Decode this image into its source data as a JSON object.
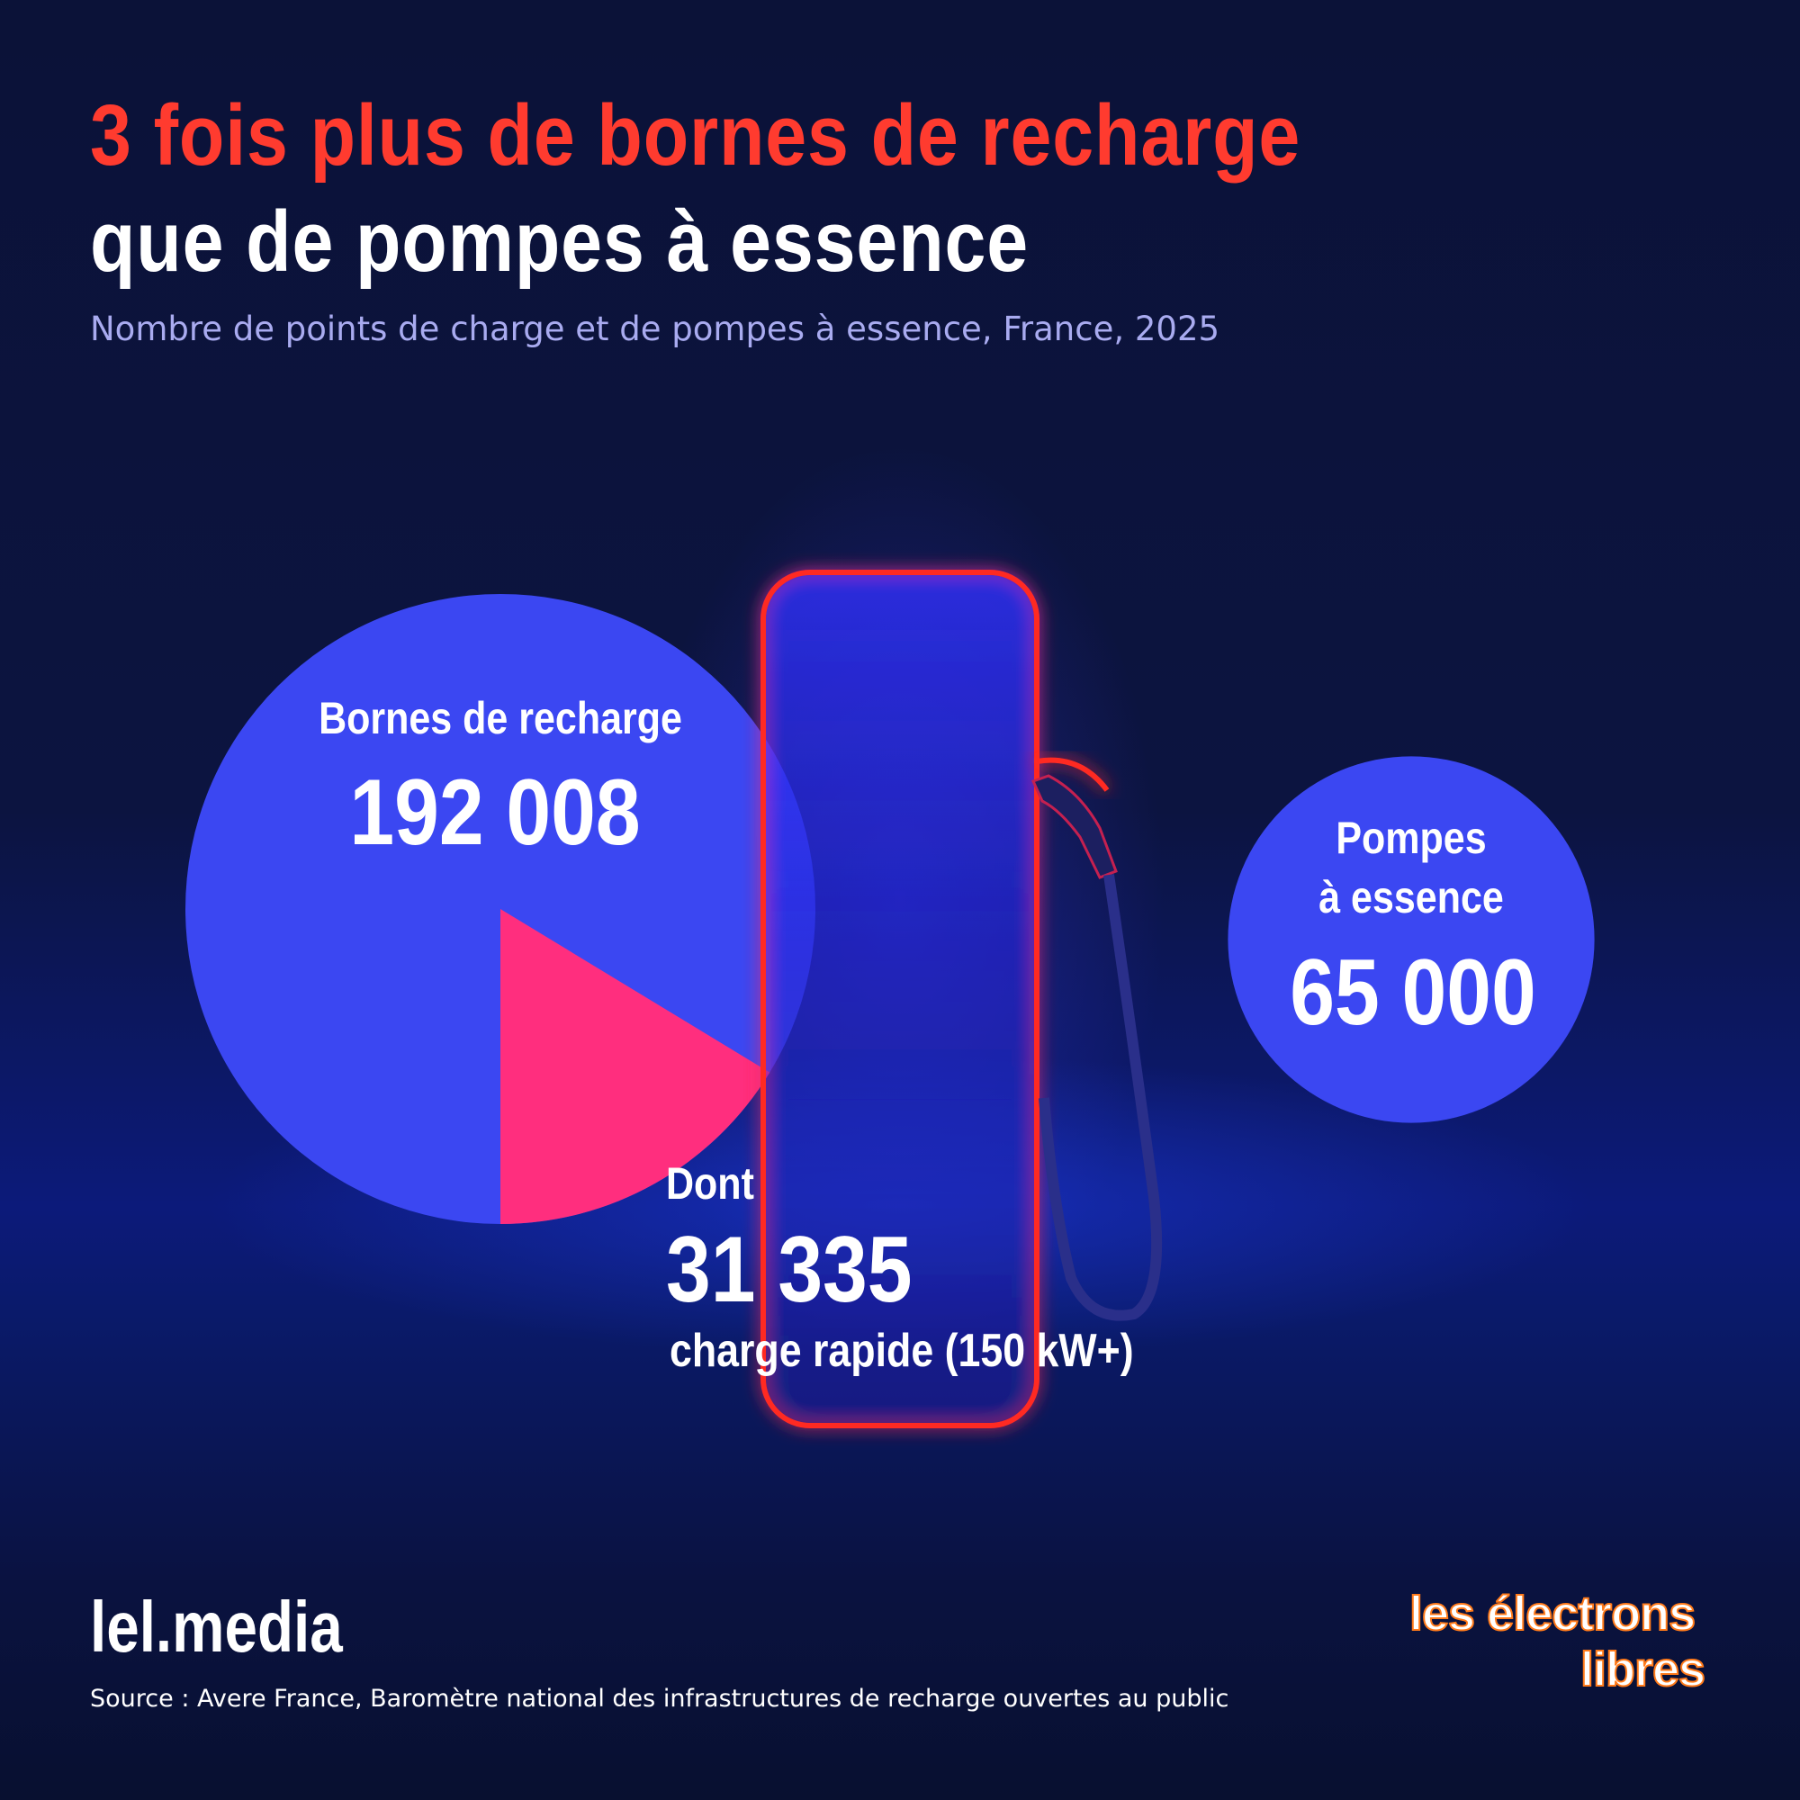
{
  "header": {
    "title_line1": "3 fois plus de bornes de recharge",
    "title_line2": "que de pompes à essence",
    "subtitle": "Nombre de points de charge et de pompes à essence, France, 2025"
  },
  "chart_data": {
    "type": "pie",
    "title": "3 fois plus de bornes de recharge que de pompes à essence",
    "subtitle": "Nombre de points de charge et de pompes à essence, France, 2025",
    "circles": [
      {
        "label": "Bornes de recharge",
        "value": 192008,
        "value_text": "192 008",
        "color": "#3b47f2",
        "slice": {
          "prefix": "Dont",
          "label": "charge rapide (150 kW+)",
          "value": 31335,
          "value_text": "31 335",
          "color": "#ff2e7e"
        }
      },
      {
        "label_line1": "Pompes",
        "label_line2": "à essence",
        "value": 65000,
        "value_text": "65 000",
        "color": "#3b47f2"
      }
    ]
  },
  "colors": {
    "title_accent": "#ff3b2f",
    "pump_outline": "#ff2a22",
    "circle": "#3b47f2",
    "slice": "#ff2e7e"
  },
  "footer": {
    "brand": "lel.media",
    "source": "Source : Avere France, Baromètre national des infrastructures de recharge ouvertes au public",
    "logo_line1": "les électrons",
    "logo_line2": "libres"
  }
}
